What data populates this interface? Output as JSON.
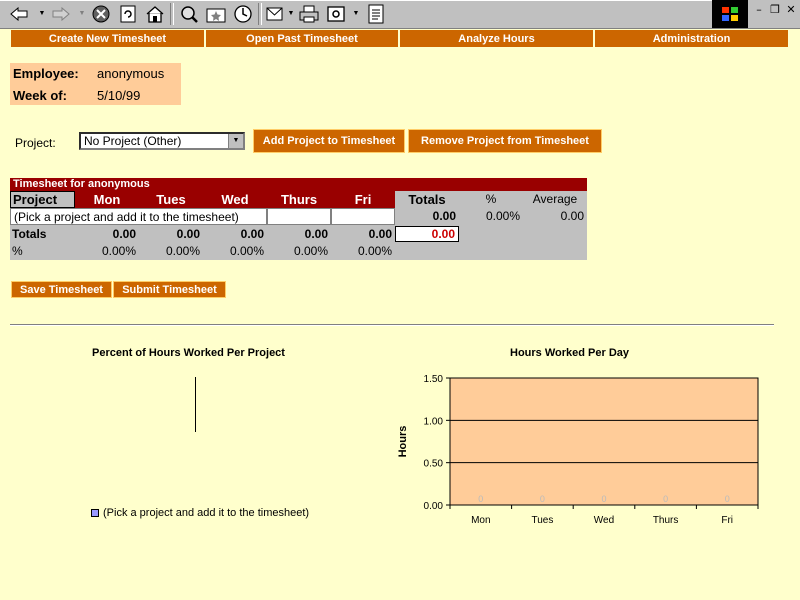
{
  "nav": {
    "items": [
      {
        "label": "Create New Timesheet"
      },
      {
        "label": "Open Past Timesheet"
      },
      {
        "label": "Analyze Hours"
      },
      {
        "label": "Administration"
      }
    ]
  },
  "employee": {
    "employee_label": "Employee:",
    "employee_value": "anonymous",
    "week_label": "Week of:",
    "week_value": "5/10/99"
  },
  "project": {
    "label": "Project:",
    "selected": "No Project (Other)",
    "add_button": "Add Project to Timesheet",
    "remove_button": "Remove Project from Timesheet"
  },
  "timesheet": {
    "title": "Timesheet for anonymous",
    "headers": {
      "project": "Project",
      "days": [
        "Mon",
        "Tues",
        "Wed",
        "Thurs",
        "Fri"
      ],
      "totals": "Totals",
      "percent": "%",
      "average": "Average"
    },
    "rows": [
      {
        "project": "(Pick a project and add it to the timesheet)",
        "total": "0.00",
        "percent": "0.00%",
        "average": "0.00"
      }
    ],
    "totals_row": {
      "label": "Totals",
      "values": [
        "0.00",
        "0.00",
        "0.00",
        "0.00",
        "0.00"
      ],
      "grand_total": "0.00"
    },
    "percent_row": {
      "label": "%",
      "values": [
        "0.00%",
        "0.00%",
        "0.00%",
        "0.00%",
        "0.00%"
      ]
    }
  },
  "actions": {
    "save": "Save Timesheet",
    "submit": "Submit Timesheet"
  },
  "colors": {
    "background": "#ffffcc",
    "nav_button": "#cc6600",
    "header_red": "#990000",
    "panel_peach": "#ffcc99",
    "table_gray": "#c0c0c0"
  },
  "chart_data": [
    {
      "type": "pie",
      "title": "Percent of Hours Worked Per Project",
      "categories": [
        "(Pick a project and add it to the timesheet)"
      ],
      "values": [
        0
      ],
      "legend": "bottom-left",
      "legend_color": "#9999ff"
    },
    {
      "type": "bar",
      "title": "Hours Worked Per Day",
      "categories": [
        "Mon",
        "Tues",
        "Wed",
        "Thurs",
        "Fri"
      ],
      "values": [
        0,
        0,
        0,
        0,
        0
      ],
      "data_labels": [
        "0",
        "0",
        "0",
        "0",
        "0"
      ],
      "xlabel": "",
      "ylabel": "Hours",
      "ylim": [
        0,
        1.5
      ],
      "yticks": [
        "0.00",
        "0.50",
        "1.00",
        "1.50"
      ],
      "grid": true,
      "plot_background": "#ffcc99"
    }
  ]
}
